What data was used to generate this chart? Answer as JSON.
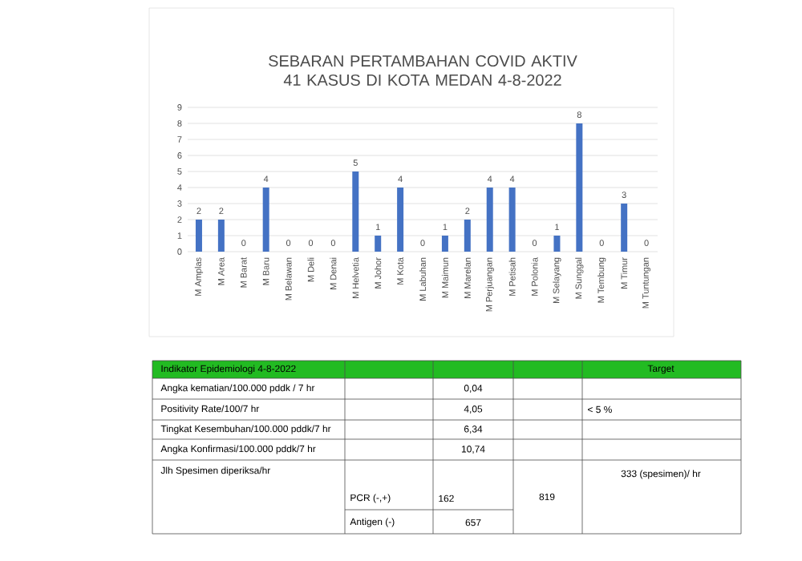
{
  "chart_data": {
    "type": "bar",
    "title": "SEBARAN PERTAMBAHAN COVID AKTIV 41 KASUS DI KOTA MEDAN 4-8-2022",
    "categories": [
      "M Amplas",
      "M Area",
      "M Barat",
      "M Baru",
      "M Belawan",
      "M Deli",
      "M Denai",
      "M Helvetia",
      "M Johor",
      "M Kota",
      "M Labuhan",
      "M Maimun",
      "M Marelan",
      "M Perjuangan",
      "M Petisah",
      "M Polonia",
      "M Selayang",
      "M Sunggal",
      "M Tembung",
      "M Timur",
      "M Tuntungan"
    ],
    "values": [
      2,
      2,
      0,
      4,
      0,
      0,
      0,
      5,
      1,
      4,
      0,
      1,
      2,
      4,
      4,
      0,
      1,
      8,
      0,
      3,
      0
    ],
    "color": "#4472c4",
    "ylim": [
      0,
      9
    ],
    "yticks": [
      0,
      1,
      2,
      3,
      4,
      5,
      6,
      7,
      8,
      9
    ],
    "grid": "y",
    "data_labels": true,
    "annotations": [
      "Indikator Epidemiologi 4-8-2022",
      "Target",
      "Angka kematian/100.000 pddk / 7 hr",
      "0,04",
      "Positivity Rate/100/7 hr",
      "4,05",
      "< 5 %",
      "Tingkat Kesembuhan/100.000 pddk/7 hr",
      "6,34",
      "Angka Konfirmasi/100.000 pddk/7 hr",
      "10,74",
      "Jlh Spesimen diperiksa/hr",
      "PCR (-,+)",
      "162",
      "819",
      "333 (spesimen)/ hr",
      "Antigen (-)",
      "657"
    ]
  }
}
